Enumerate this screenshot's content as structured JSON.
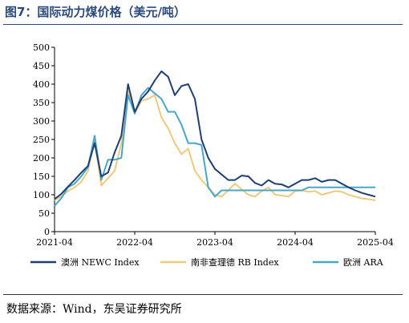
{
  "header": {
    "title": "图7：国际动力煤价格（美元/吨）"
  },
  "footer": {
    "source": "数据来源：Wind，东吴证券研究所"
  },
  "chart_data": {
    "type": "line",
    "title": "图7：国际动力煤价格（美元/吨）",
    "ylim": [
      0,
      500
    ],
    "yticks": [
      "0",
      "50",
      "100",
      "150",
      "200",
      "250",
      "300",
      "350",
      "400",
      "450",
      "500"
    ],
    "xlim": [
      "2021-04",
      "2025-04"
    ],
    "xticks": [
      "2021-04",
      "2022-04",
      "2023-04",
      "2024-04",
      "2025-04"
    ],
    "legend_position": "bottom",
    "grid": false,
    "series": [
      {
        "name": "澳洲 NEWC Index",
        "color": "#1f3f73",
        "x": [
          "2021-04",
          "2021-05",
          "2021-06",
          "2021-07",
          "2021-08",
          "2021-09",
          "2021-10",
          "2021-11",
          "2021-12",
          "2022-01",
          "2022-02",
          "2022-03",
          "2022-04",
          "2022-05",
          "2022-06",
          "2022-07",
          "2022-08",
          "2022-09",
          "2022-10",
          "2022-11",
          "2022-12",
          "2023-01",
          "2023-02",
          "2023-03",
          "2023-04",
          "2023-05",
          "2023-06",
          "2023-07",
          "2023-08",
          "2023-09",
          "2023-10",
          "2023-11",
          "2023-12",
          "2024-01",
          "2024-02",
          "2024-03",
          "2024-04",
          "2024-05",
          "2024-06",
          "2024-07",
          "2024-08",
          "2024-09",
          "2024-10",
          "2024-11",
          "2024-12",
          "2025-01",
          "2025-02",
          "2025-03",
          "2025-04"
        ],
        "y": [
          88,
          102,
          122,
          140,
          160,
          178,
          240,
          150,
          160,
          215,
          260,
          400,
          325,
          360,
          380,
          410,
          435,
          420,
          370,
          395,
          400,
          360,
          250,
          200,
          170,
          155,
          140,
          140,
          152,
          150,
          132,
          125,
          140,
          130,
          128,
          120,
          130,
          140,
          140,
          145,
          135,
          140,
          140,
          130,
          120,
          112,
          105,
          100,
          95
        ]
      },
      {
        "name": "南非查理德 RB Index",
        "color": "#f2c97a",
        "x": [
          "2021-04",
          "2021-05",
          "2021-06",
          "2021-07",
          "2021-08",
          "2021-09",
          "2021-10",
          "2021-11",
          "2021-12",
          "2022-01",
          "2022-02",
          "2022-03",
          "2022-04",
          "2022-05",
          "2022-06",
          "2022-07",
          "2022-08",
          "2022-09",
          "2022-10",
          "2022-11",
          "2022-12",
          "2023-01",
          "2023-02",
          "2023-03",
          "2023-04",
          "2023-05",
          "2023-06",
          "2023-07",
          "2023-08",
          "2023-09",
          "2023-10",
          "2023-11",
          "2023-12",
          "2024-01",
          "2024-02",
          "2024-03",
          "2024-04",
          "2024-05",
          "2024-06",
          "2024-07",
          "2024-08",
          "2024-09",
          "2024-10",
          "2024-11",
          "2024-12",
          "2025-01",
          "2025-02",
          "2025-03",
          "2025-04"
        ],
        "y": [
          85,
          95,
          110,
          120,
          135,
          165,
          250,
          125,
          145,
          165,
          240,
          380,
          320,
          355,
          360,
          370,
          310,
          280,
          240,
          210,
          225,
          165,
          140,
          120,
          100,
          95,
          112,
          130,
          115,
          100,
          95,
          110,
          120,
          100,
          98,
          95,
          110,
          112,
          108,
          110,
          100,
          105,
          110,
          108,
          100,
          95,
          90,
          88,
          85
        ]
      },
      {
        "name": "欧洲 ARA",
        "color": "#48a7c9",
        "x": [
          "2021-04",
          "2021-05",
          "2021-06",
          "2021-07",
          "2021-08",
          "2021-09",
          "2021-10",
          "2021-11",
          "2021-12",
          "2022-01",
          "2022-02",
          "2022-03",
          "2022-04",
          "2022-05",
          "2022-06",
          "2022-07",
          "2022-08",
          "2022-09",
          "2022-10",
          "2022-11",
          "2022-12",
          "2023-01",
          "2023-02",
          "2023-03",
          "2023-04",
          "2023-05",
          "2023-06",
          "2023-07",
          "2023-08",
          "2023-09",
          "2023-10",
          "2023-11",
          "2023-12",
          "2024-01",
          "2024-02",
          "2024-03",
          "2024-04",
          "2024-05",
          "2024-06",
          "2024-07",
          "2024-08",
          "2024-09",
          "2024-10",
          "2024-11",
          "2024-12",
          "2025-01",
          "2025-02",
          "2025-03",
          "2025-04"
        ],
        "y": [
          70,
          90,
          120,
          130,
          150,
          175,
          260,
          140,
          195,
          195,
          200,
          370,
          320,
          370,
          390,
          375,
          360,
          325,
          325,
          290,
          240,
          240,
          235,
          120,
          95,
          112,
          112,
          112,
          112,
          112,
          112,
          112,
          112,
          112,
          112,
          112,
          112,
          112,
          120,
          120,
          120,
          120,
          120,
          120,
          120,
          120,
          120,
          120,
          120
        ]
      }
    ]
  }
}
